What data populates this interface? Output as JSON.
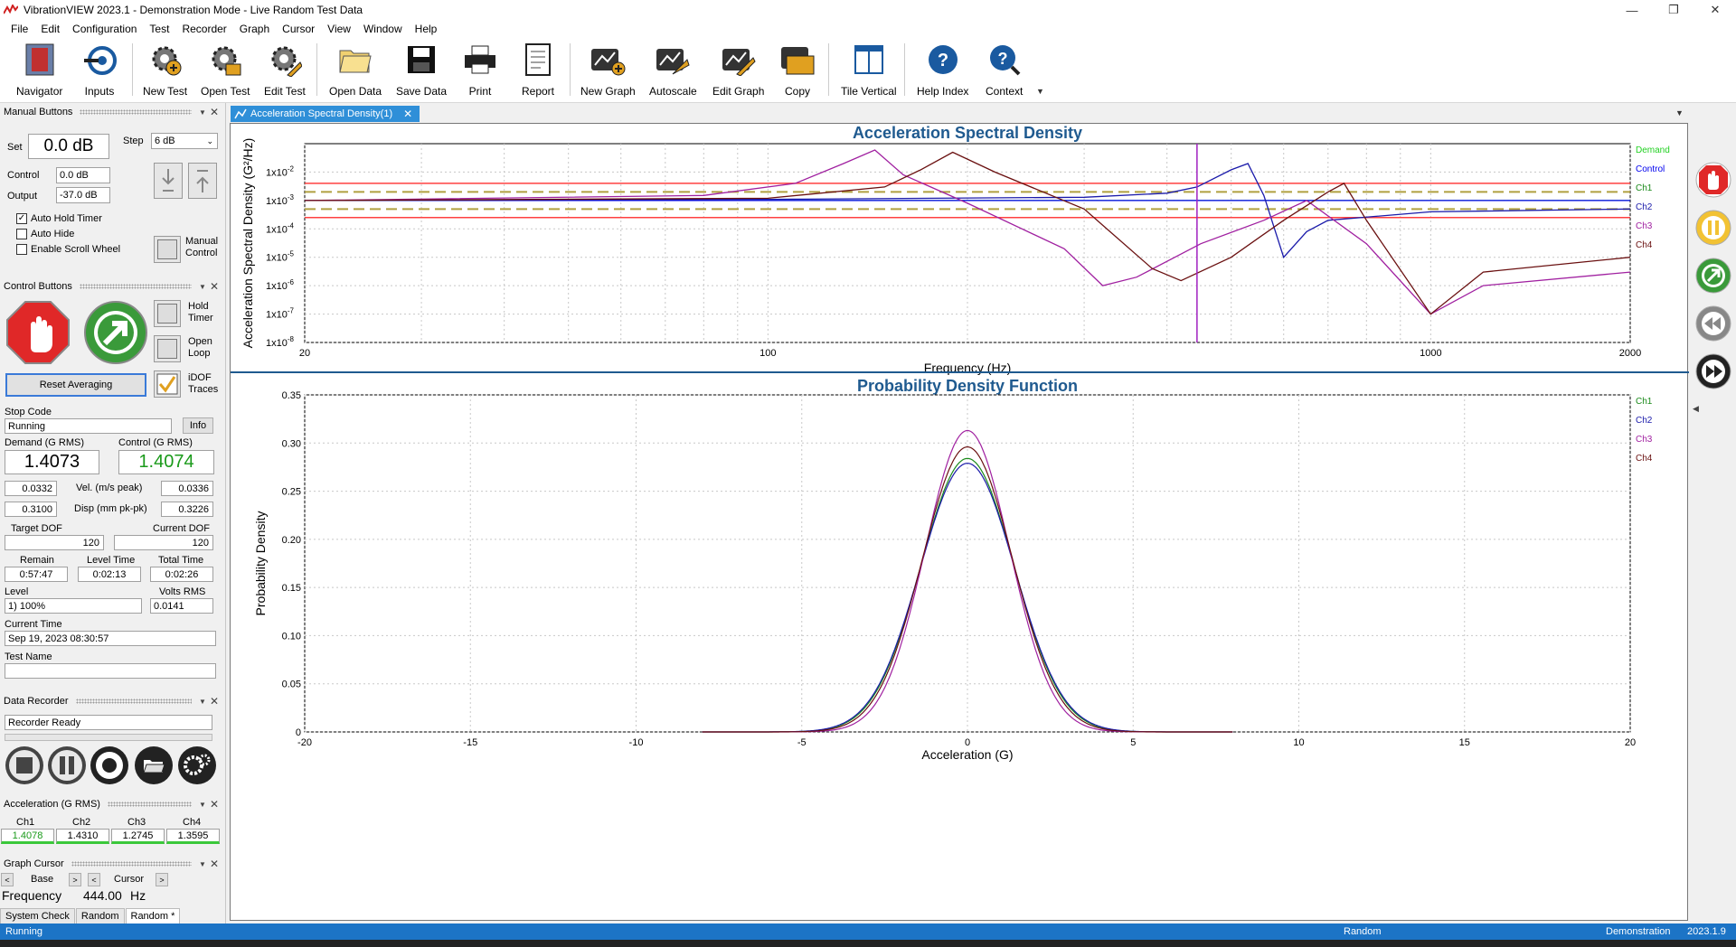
{
  "window": {
    "title": "VibrationVIEW 2023.1 - Demonstration Mode - Live Random Test Data"
  },
  "menu": [
    "File",
    "Edit",
    "Configuration",
    "Test",
    "Recorder",
    "Graph",
    "Cursor",
    "View",
    "Window",
    "Help"
  ],
  "toolbar": {
    "navigator": "Navigator",
    "inputs": "Inputs",
    "new_test": "New Test",
    "open_test": "Open Test",
    "edit_test": "Edit Test",
    "open_data": "Open Data",
    "save_data": "Save Data",
    "print": "Print",
    "report": "Report",
    "new_graph": "New Graph",
    "autoscale": "Autoscale",
    "edit_graph": "Edit Graph",
    "copy": "Copy",
    "tile_vertical": "Tile Vertical",
    "help_index": "Help Index",
    "context": "Context"
  },
  "manual": {
    "header": "Manual Buttons",
    "set_label": "Set",
    "set_value": "0.0 dB",
    "step_label": "Step",
    "step_value": "6 dB",
    "control_label": "Control",
    "control_value": "0.0 dB",
    "output_label": "Output",
    "output_value": "-37.0 dB",
    "auto_hold_timer": "Auto Hold Timer",
    "auto_hide": "Auto Hide",
    "enable_scroll": "Enable Scroll Wheel",
    "manual_control": "Manual\nControl"
  },
  "control": {
    "header": "Control Buttons",
    "hold_timer": "Hold\nTimer",
    "open_loop": "Open\nLoop",
    "idof_traces": "iDOF\nTraces",
    "reset_averaging": "Reset Averaging",
    "stop_code_label": "Stop Code",
    "stop_code": "Running",
    "info": "Info",
    "demand_label": "Demand (G RMS)",
    "demand_value": "1.4073",
    "control_label": "Control (G RMS)",
    "control_value": "1.4074",
    "vel_label": "Vel. (m/s peak)",
    "vel_left": "0.0332",
    "vel_right": "0.0336",
    "disp_label": "Disp (mm pk-pk)",
    "disp_left": "0.3100",
    "disp_right": "0.3226",
    "target_dof_label": "Target DOF",
    "target_dof": "120",
    "current_dof_label": "Current DOF",
    "current_dof": "120",
    "remain_label": "Remain",
    "remain": "0:57:47",
    "level_time_label": "Level Time",
    "level_time": "0:02:13",
    "total_time_label": "Total Time",
    "total_time": "0:02:26",
    "level_label": "Level",
    "level": "1) 100%",
    "volts_label": "Volts RMS",
    "volts": "0.0141",
    "current_time_label": "Current Time",
    "current_time": "Sep 19, 2023 08:30:57",
    "test_name_label": "Test Name",
    "test_name": ""
  },
  "recorder": {
    "header": "Data Recorder",
    "status": "Recorder Ready"
  },
  "accel": {
    "header": "Acceleration (G RMS)",
    "channels": [
      {
        "name": "Ch1",
        "value": "1.4078"
      },
      {
        "name": "Ch2",
        "value": "1.4310"
      },
      {
        "name": "Ch3",
        "value": "1.2745"
      },
      {
        "name": "Ch4",
        "value": "1.3595"
      }
    ]
  },
  "cursor": {
    "header": "Graph Cursor",
    "base_label": "Base",
    "cursor_label": "Cursor",
    "freq_label": "Frequency",
    "freq_value": "444.00",
    "freq_unit": "Hz"
  },
  "bottom_tabs": [
    "System Check",
    "Random",
    "Random *"
  ],
  "doc_tab": "Acceleration Spectral Density(1)",
  "status": {
    "left": "Running",
    "center": "Random",
    "mode": "Demonstration",
    "version": "2023.1.9"
  },
  "colors": {
    "demand": "#22d022",
    "control": "#0000ee",
    "ch1": "#1a8a1a",
    "ch2": "#1a1aaa",
    "ch3": "#a020a0",
    "ch4": "#6a1010",
    "limit": "#ff4040",
    "tol": "#b0a040",
    "title": "#1f5a8f"
  },
  "chart_data": [
    {
      "type": "line",
      "title": "Acceleration Spectral Density",
      "xlabel": "Frequency (Hz)",
      "ylabel": "Acceleration Spectral Density (G²/Hz)",
      "xscale": "log",
      "yscale": "log",
      "xlim": [
        20,
        2000
      ],
      "ylim": [
        1e-08,
        0.1
      ],
      "x_ticks": [
        "20",
        "100",
        "1000",
        "2000"
      ],
      "y_ticks": [
        "1x10-2",
        "1x10-3",
        "1x10-4",
        "1x10-5",
        "1x10-6",
        "1x10-7",
        "1x10-8"
      ],
      "cursor_x": 444,
      "legend": [
        "Demand",
        "Control",
        "Ch1",
        "Ch2",
        "Ch3",
        "Ch4"
      ],
      "limit_lines": {
        "abort": [
          0.004,
          0.00025
        ],
        "alarm": [
          0.002,
          0.0005
        ]
      },
      "series": [
        {
          "name": "Demand",
          "x": [
            20,
            2000
          ],
          "y": [
            0.001,
            0.001
          ]
        },
        {
          "name": "Control",
          "x": [
            20,
            100,
            300,
            444,
            530,
            570,
            600,
            700,
            1000,
            2000
          ],
          "y": [
            0.001,
            0.001,
            0.001,
            0.001,
            0.001,
            0.001,
            0.001,
            0.001,
            0.001,
            0.001
          ]
        },
        {
          "name": "Ch2",
          "x": [
            20,
            100,
            300,
            400,
            444,
            500,
            530,
            560,
            600,
            650,
            700,
            1000,
            2000
          ],
          "y": [
            0.001,
            0.0011,
            0.0013,
            0.0018,
            0.003,
            0.012,
            0.02,
            0.0015,
            1e-05,
            8e-05,
            0.0002,
            0.0004,
            0.0005
          ]
        },
        {
          "name": "Ch3",
          "x": [
            20,
            80,
            110,
            130,
            145,
            160,
            200,
            280,
            320,
            360,
            450,
            560,
            650,
            800,
            1000,
            1200,
            2000
          ],
          "y": [
            0.001,
            0.0015,
            0.004,
            0.02,
            0.06,
            0.008,
            0.0008,
            2e-05,
            1e-06,
            2e-06,
            3e-05,
            0.0002,
            0.001,
            3e-05,
            1e-07,
            1e-06,
            3e-06
          ]
        },
        {
          "name": "Ch4",
          "x": [
            20,
            100,
            150,
            170,
            190,
            220,
            300,
            380,
            420,
            500,
            600,
            700,
            740,
            800,
            1000,
            1200,
            2000
          ],
          "y": [
            0.001,
            0.0012,
            0.003,
            0.012,
            0.05,
            0.01,
            0.0005,
            4e-06,
            1.5e-06,
            1e-05,
            0.0002,
            0.002,
            0.004,
            0.0002,
            1e-07,
            3e-06,
            1e-05
          ]
        }
      ]
    },
    {
      "type": "line",
      "title": "Probability Density Function",
      "xlabel": "Acceleration (G)",
      "ylabel": "Probability Density",
      "xlim": [
        -20,
        20
      ],
      "ylim": [
        0,
        0.35
      ],
      "x_ticks": [
        "-20",
        "-15",
        "-10",
        "-5",
        "0",
        "5",
        "10",
        "15",
        "20"
      ],
      "y_ticks": [
        "0",
        "0.05",
        "0.10",
        "0.15",
        "0.20",
        "0.25",
        "0.30",
        "0.35"
      ],
      "legend": [
        "Ch1",
        "Ch2",
        "Ch3",
        "Ch4"
      ],
      "series": [
        {
          "name": "Ch1",
          "peak": 0.284,
          "sigma": 1.408
        },
        {
          "name": "Ch2",
          "peak": 0.279,
          "sigma": 1.431
        },
        {
          "name": "Ch3",
          "peak": 0.313,
          "sigma": 1.275
        },
        {
          "name": "Ch4",
          "peak": 0.296,
          "sigma": 1.36
        }
      ]
    }
  ]
}
